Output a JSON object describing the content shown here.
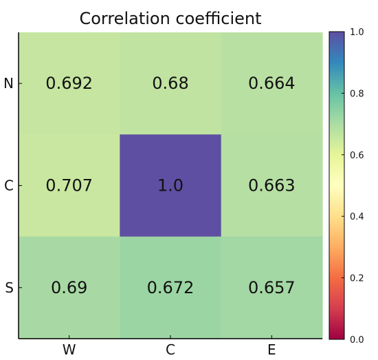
{
  "chart_data": {
    "type": "heatmap",
    "title": "Correlation coefficient",
    "x_categories": [
      "W",
      "C",
      "E"
    ],
    "y_categories": [
      "N",
      "C",
      "S"
    ],
    "values": [
      [
        0.692,
        0.68,
        0.664
      ],
      [
        0.707,
        1.0,
        0.663
      ],
      [
        0.69,
        0.672,
        0.657
      ]
    ],
    "value_labels": [
      [
        "0.692",
        "0.68",
        "0.664"
      ],
      [
        "0.707",
        "1.0",
        "0.663"
      ],
      [
        "0.69",
        "0.672",
        "0.657"
      ]
    ],
    "colorbar": {
      "colormap": "Spectral",
      "range": [
        0.0,
        1.0
      ],
      "ticks": [
        0.0,
        0.2,
        0.4,
        0.6,
        0.8,
        1.0
      ],
      "tick_labels": [
        "0.0",
        "0.2",
        "0.4",
        "0.6",
        "0.8",
        "1.0"
      ]
    },
    "colors": {
      "0.692": "#c5e5a0",
      "0.68": "#c1e3a2",
      "0.664": "#b9e0a3",
      "0.707": "#c9e7a0",
      "1.0": "#5e4fa2",
      "0.663": "#b6dfa3",
      "0.69": "#a8d9a4",
      "0.672": "#9cd5a4",
      "0.657": "#a3d7a4"
    }
  }
}
